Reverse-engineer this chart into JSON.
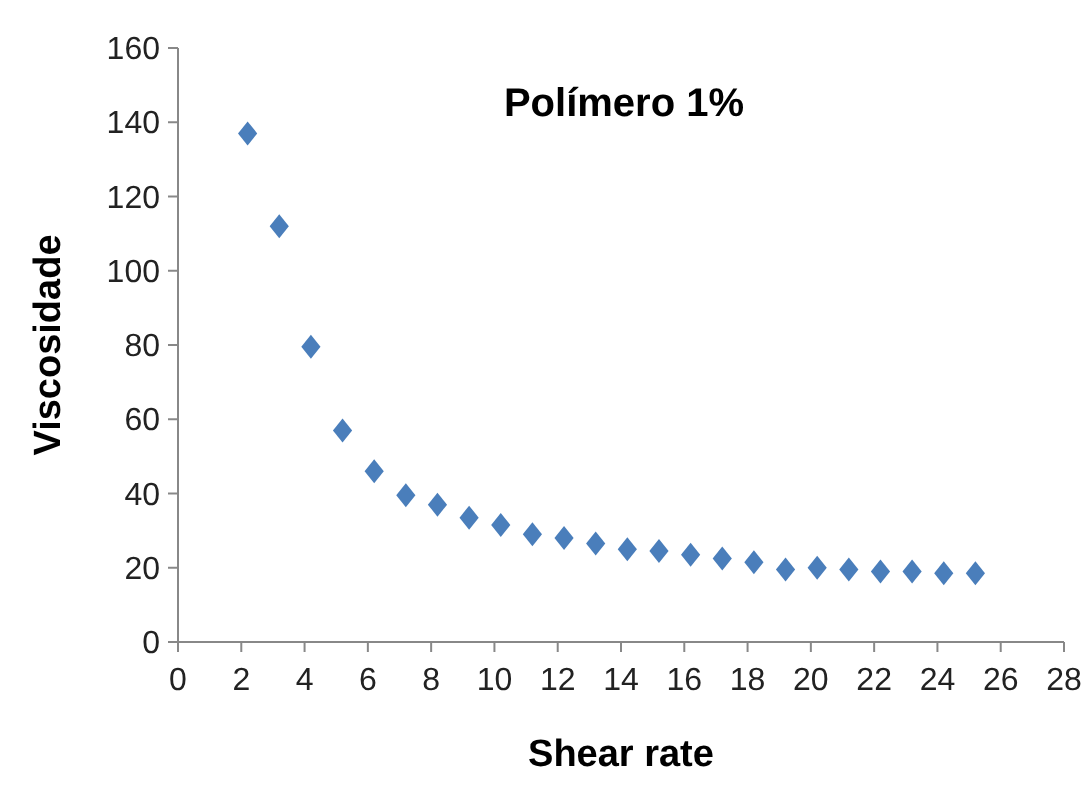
{
  "chart_data": {
    "type": "scatter",
    "title": "Polímero 1%",
    "xlabel": "Shear rate",
    "ylabel": "Viscosidade",
    "x": [
      2.2,
      3.2,
      4.2,
      5.2,
      6.2,
      7.2,
      8.2,
      9.2,
      10.2,
      11.2,
      12.2,
      13.2,
      14.2,
      15.2,
      16.2,
      17.2,
      18.2,
      19.2,
      20.2,
      21.2,
      22.2,
      23.2,
      24.2,
      25.2
    ],
    "values": [
      137,
      112,
      79.5,
      57,
      46,
      39.5,
      37,
      33.5,
      31.5,
      29,
      28,
      26.5,
      25,
      24.5,
      23.5,
      22.5,
      21.5,
      19.5,
      20,
      19.5,
      19,
      19,
      18.5,
      18.5
    ],
    "color": "#4a7ebb",
    "marker": "diamond",
    "xlim": [
      0,
      28
    ],
    "xticks": [
      0,
      2,
      4,
      6,
      8,
      10,
      12,
      14,
      16,
      18,
      20,
      22,
      24,
      26,
      28
    ],
    "ylim": [
      0,
      160
    ],
    "yticks": [
      0,
      20,
      40,
      60,
      80,
      100,
      120,
      140,
      160
    ],
    "grid": false
  }
}
